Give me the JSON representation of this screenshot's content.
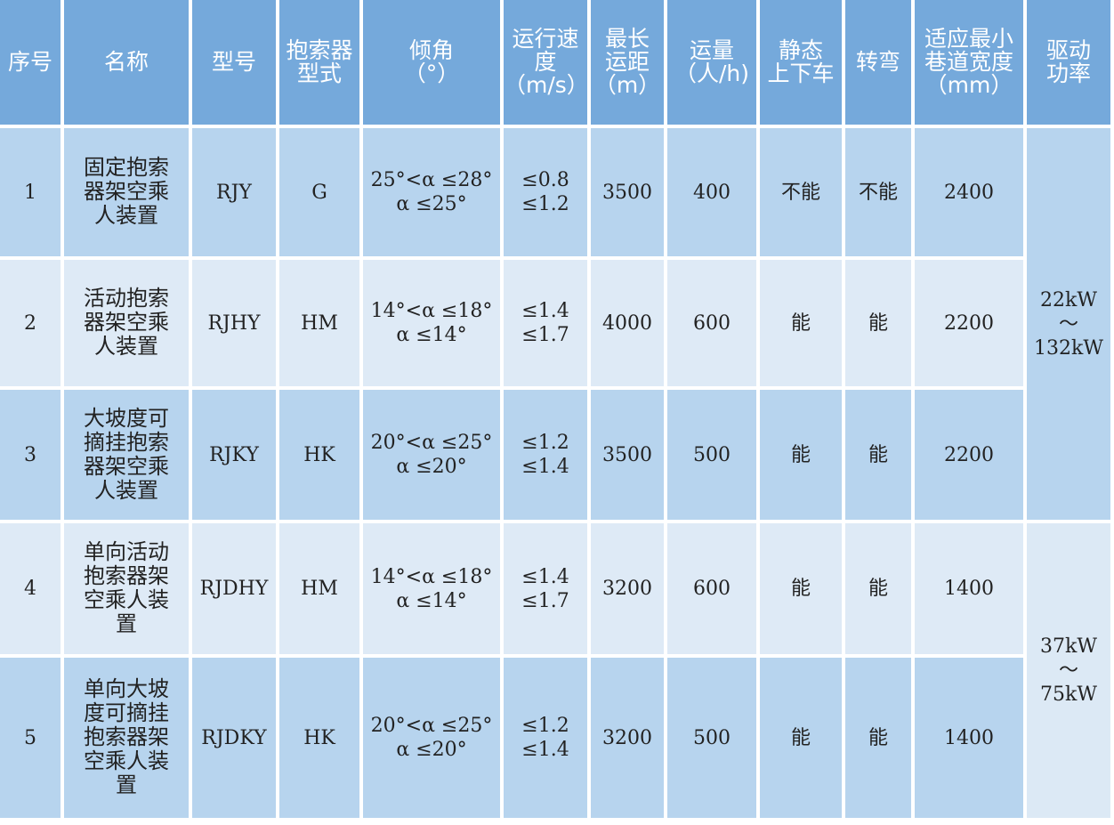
{
  "headers": [
    [
      "序号"
    ],
    [
      "名称"
    ],
    [
      "型号"
    ],
    [
      "抱索器",
      "型式"
    ],
    [
      "倾角",
      "（°）"
    ],
    [
      "运行速",
      "度",
      "（m/s）"
    ],
    [
      "最长",
      "运距",
      "（m）"
    ],
    [
      "运量",
      "（人/h)"
    ],
    [
      "静态",
      "上下车"
    ],
    [
      "转弯"
    ],
    [
      "适应最小",
      "巷道宽度",
      "（mm）"
    ],
    [
      "驱动",
      "功率"
    ]
  ],
  "rows": [
    {
      "no": "1",
      "name": "固定抱索器架空乘人装置",
      "model": "RJY",
      "grip": "G",
      "angle": [
        "25°<α ≤28°",
        "α ≤25°"
      ],
      "speed": [
        "≤0.8",
        "≤1.2"
      ],
      "distance": "3500",
      "capacity": "400",
      "static": "不能",
      "turn": "不能",
      "width": "2400"
    },
    {
      "no": "2",
      "name": "活动抱索器架空乘人装置",
      "model": "RJHY",
      "grip": "HM",
      "angle": [
        "14°<α ≤18°",
        "α ≤14°"
      ],
      "speed": [
        "≤1.4",
        "≤1.7"
      ],
      "distance": "4000",
      "capacity": "600",
      "static": "能",
      "turn": "能",
      "width": "2200"
    },
    {
      "no": "3",
      "name": "大坡度可摘挂抱索器架空乘人装置",
      "model": "RJKY",
      "grip": "HK",
      "angle": [
        "20°<α ≤25°",
        "α ≤20°"
      ],
      "speed": [
        "≤1.2",
        "≤1.4"
      ],
      "distance": "3500",
      "capacity": "500",
      "static": "能",
      "turn": "能",
      "width": "2200"
    },
    {
      "no": "4",
      "name": "单向活动抱索器架空乘人装置",
      "model": "RJDHY",
      "grip": "HM",
      "angle": [
        "14°<α ≤18°",
        "α ≤14°"
      ],
      "speed": [
        "≤1.4",
        "≤1.7"
      ],
      "distance": "3200",
      "capacity": "600",
      "static": "能",
      "turn": "能",
      "width": "1400"
    },
    {
      "no": "5",
      "name": "单向大坡度可摘挂抱索器架空乘人装置",
      "model": "RJDKY",
      "grip": "HK",
      "angle": [
        "20°<α ≤25°",
        "α ≤20°"
      ],
      "speed": [
        "≤1.2",
        "≤1.4"
      ],
      "distance": "3200",
      "capacity": "500",
      "static": "能",
      "turn": "能",
      "width": "1400"
    }
  ],
  "power": [
    [
      "22kW",
      "～",
      "132kW"
    ],
    [
      "37kW",
      "～",
      "75kW"
    ]
  ],
  "colors": {
    "header": "#75a9db",
    "row_dark": "#b7d4ee",
    "row_light": "#deeaf6"
  }
}
